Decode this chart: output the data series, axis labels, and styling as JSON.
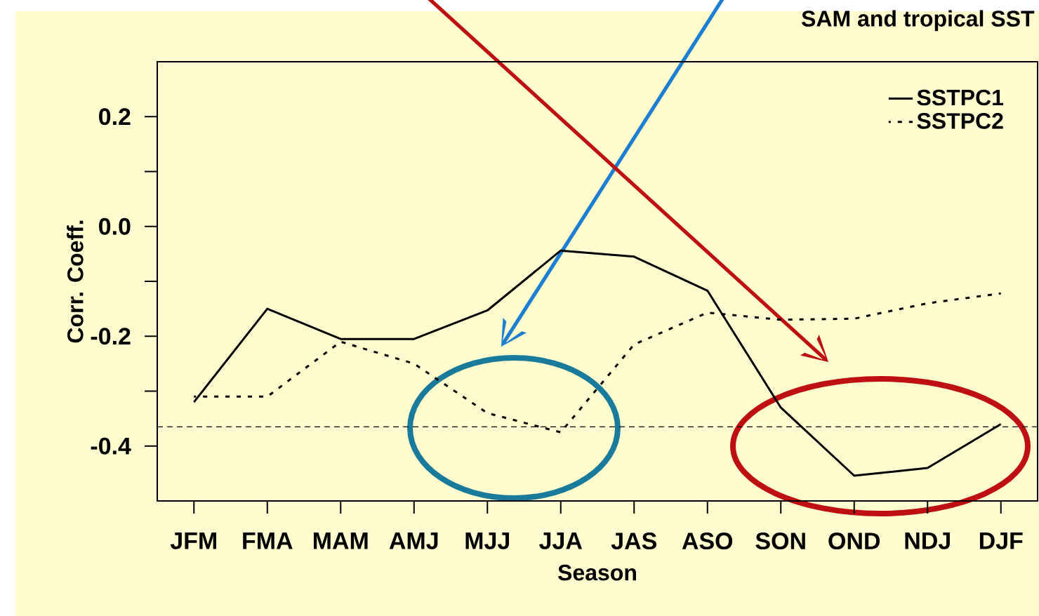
{
  "chart_data": {
    "type": "line",
    "title": "SAM and tropical SST",
    "xlabel": "Season",
    "ylabel": "Corr. Coeff.",
    "categories": [
      "JFM",
      "FMA",
      "MAM",
      "AMJ",
      "MJJ",
      "JJA",
      "JAS",
      "ASO",
      "SON",
      "OND",
      "NDJ",
      "DJF"
    ],
    "series": [
      {
        "name": "SSTPC1",
        "color": "#000000",
        "line_style": "solid",
        "values": [
          -0.32,
          -0.15,
          -0.205,
          -0.205,
          -0.153,
          -0.044,
          -0.055,
          -0.117,
          -0.33,
          -0.454,
          -0.44,
          -0.36
        ]
      },
      {
        "name": "SSTPC2",
        "color": "#000000",
        "line_style": "dotted",
        "values": [
          -0.31,
          -0.31,
          -0.21,
          -0.25,
          -0.34,
          -0.375,
          -0.215,
          -0.157,
          -0.17,
          -0.168,
          -0.14,
          -0.122
        ]
      }
    ],
    "ylim": [
      -0.5,
      0.3
    ],
    "yticks": [
      -0.4,
      {
        "value": -0.3,
        "label": null
      },
      -0.2,
      {
        "value": -0.1,
        "label": null
      },
      {
        "value": 0,
        "label": "0.0"
      },
      {
        "value": 0.1,
        "label": null
      },
      0.2
    ],
    "ref_lines": [
      {
        "axis": "y",
        "value": -0.365,
        "color": "#000000",
        "line_style": "dashed"
      }
    ],
    "legend": "top right",
    "grid": false,
    "marker": "none"
  }
}
